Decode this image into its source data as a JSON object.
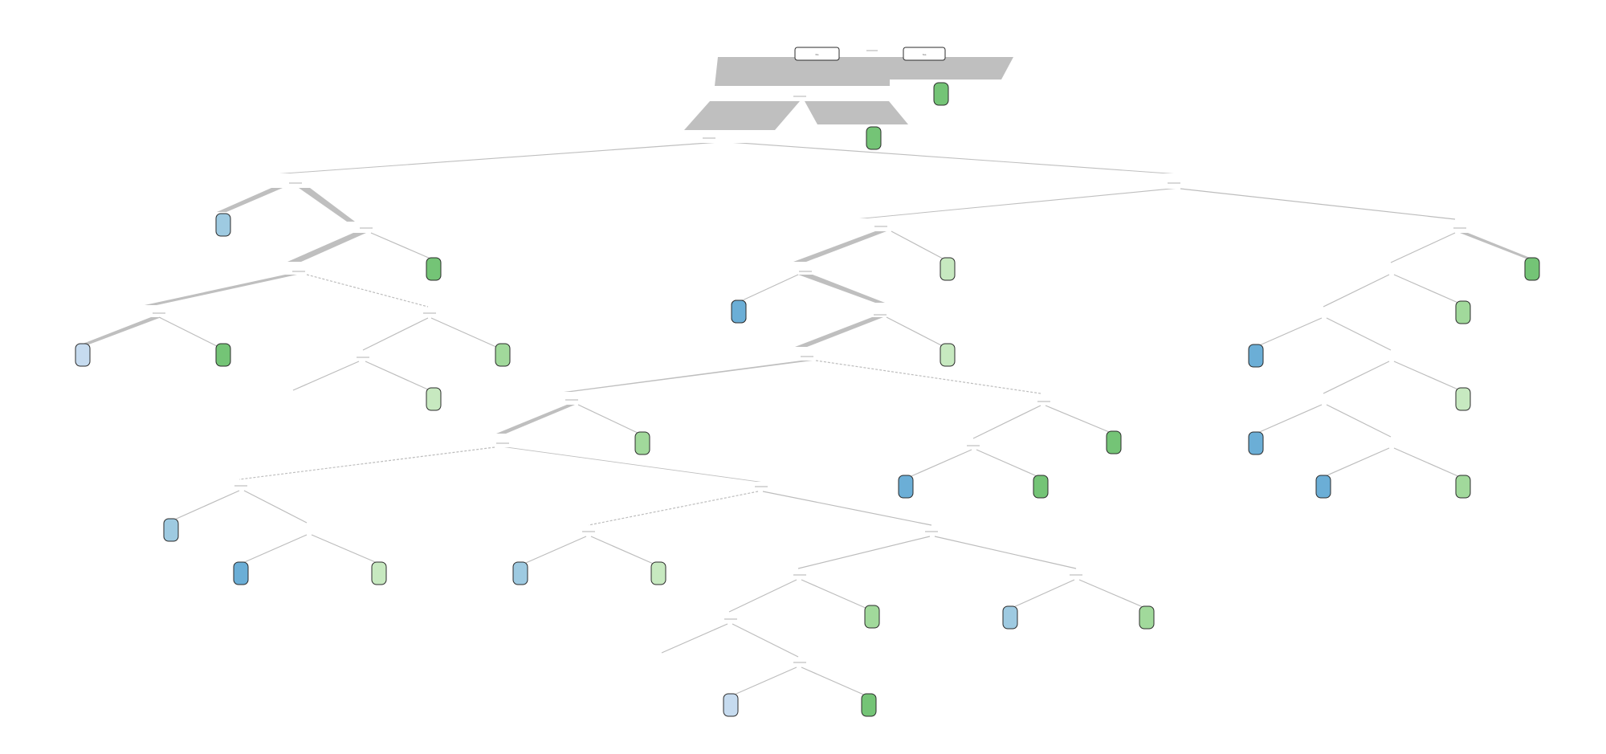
{
  "colors": {
    "edge": "#bdbdbd",
    "band": "#bfbfbf",
    "blue_dark": "#6baed6",
    "blue_mid": "#9ecae1",
    "blue_light": "#c6dbef",
    "green_dark": "#74c476",
    "green_mid": "#a1d99b",
    "green_light": "#c7e9c0",
    "outline": "#2b2b2b"
  },
  "header": {
    "box_left_label": "No",
    "box_right_label": "Yes"
  },
  "nodes": [
    {
      "id": "n1",
      "kind": "split",
      "label": ""
    },
    {
      "id": "n2",
      "kind": "split",
      "label": ""
    },
    {
      "id": "n3",
      "kind": "split",
      "label": ""
    },
    {
      "id": "n4",
      "kind": "split",
      "label": ""
    },
    {
      "id": "n5",
      "kind": "split",
      "label": ""
    },
    {
      "id": "n6",
      "kind": "split",
      "label": ""
    },
    {
      "id": "n7",
      "kind": "split",
      "label": ""
    },
    {
      "id": "n8",
      "kind": "split",
      "label": ""
    },
    {
      "id": "n9",
      "kind": "split",
      "label": ""
    },
    {
      "id": "n10",
      "kind": "split",
      "label": ""
    },
    {
      "id": "n11",
      "kind": "split",
      "label": ""
    },
    {
      "id": "n12",
      "kind": "split",
      "label": ""
    },
    {
      "id": "n13",
      "kind": "split",
      "label": ""
    },
    {
      "id": "n14",
      "kind": "split",
      "label": ""
    },
    {
      "id": "n15",
      "kind": "split",
      "label": ""
    },
    {
      "id": "n16",
      "kind": "split",
      "label": ""
    },
    {
      "id": "n17",
      "kind": "split",
      "label": ""
    },
    {
      "id": "n18",
      "kind": "split",
      "label": ""
    },
    {
      "id": "n19",
      "kind": "split",
      "label": ""
    },
    {
      "id": "n20",
      "kind": "split",
      "label": ""
    },
    {
      "id": "n21",
      "kind": "split",
      "label": ""
    },
    {
      "id": "n22",
      "kind": "split",
      "label": ""
    },
    {
      "id": "n23",
      "kind": "split",
      "label": ""
    },
    {
      "id": "n24",
      "kind": "split",
      "label": ""
    },
    {
      "id": "n25",
      "kind": "split",
      "label": ""
    },
    {
      "id": "n26",
      "kind": "split",
      "label": ""
    }
  ],
  "leaves": [
    {
      "id": "L1",
      "color": "green_dark",
      "label": ""
    },
    {
      "id": "L2",
      "color": "green_dark",
      "label": ""
    },
    {
      "id": "L3",
      "color": "blue_mid",
      "label": ""
    },
    {
      "id": "L4",
      "color": "green_dark",
      "label": ""
    },
    {
      "id": "L5",
      "color": "blue_light",
      "label": ""
    },
    {
      "id": "L6",
      "color": "green_dark",
      "label": ""
    },
    {
      "id": "L7",
      "color": "blue_dark",
      "label": ""
    },
    {
      "id": "L8",
      "color": "green_light",
      "label": ""
    },
    {
      "id": "L9",
      "color": "green_mid",
      "label": ""
    },
    {
      "id": "L10",
      "color": "green_light",
      "label": ""
    },
    {
      "id": "L11",
      "color": "blue_dark",
      "label": ""
    },
    {
      "id": "L12",
      "color": "green_light",
      "label": ""
    },
    {
      "id": "L13",
      "color": "green_mid",
      "label": ""
    },
    {
      "id": "L14",
      "color": "blue_mid",
      "label": ""
    },
    {
      "id": "L15",
      "color": "blue_dark",
      "label": ""
    },
    {
      "id": "L16",
      "color": "green_light",
      "label": ""
    },
    {
      "id": "L17",
      "color": "blue_mid",
      "label": ""
    },
    {
      "id": "L18",
      "color": "green_light",
      "label": ""
    },
    {
      "id": "L19",
      "color": "green_dark",
      "label": ""
    },
    {
      "id": "L20",
      "color": "blue_dark",
      "label": ""
    },
    {
      "id": "L21",
      "color": "green_dark",
      "label": ""
    },
    {
      "id": "L22",
      "color": "green_dark",
      "label": ""
    },
    {
      "id": "L23",
      "color": "green_mid",
      "label": ""
    },
    {
      "id": "L24",
      "color": "blue_dark",
      "label": ""
    },
    {
      "id": "L25",
      "color": "green_light",
      "label": ""
    },
    {
      "id": "L26",
      "color": "blue_dark",
      "label": ""
    },
    {
      "id": "L27",
      "color": "blue_dark",
      "label": ""
    },
    {
      "id": "L28",
      "color": "green_mid",
      "label": ""
    },
    {
      "id": "L29",
      "color": "green_mid",
      "label": ""
    },
    {
      "id": "L30",
      "color": "blue_mid",
      "label": ""
    },
    {
      "id": "L31",
      "color": "green_mid",
      "label": ""
    },
    {
      "id": "L32",
      "color": "blue_light",
      "label": ""
    },
    {
      "id": "L33",
      "color": "green_dark",
      "label": ""
    }
  ]
}
